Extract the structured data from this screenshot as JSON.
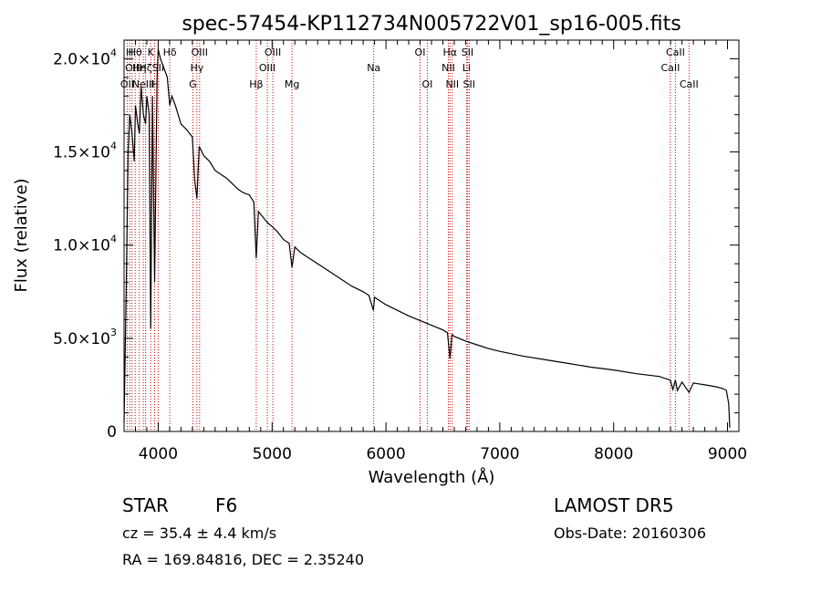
{
  "chart_data": {
    "type": "line",
    "title": "spec-57454-KP112734N005722V01_sp16-005.fits",
    "xlabel": "Wavelength (Å)",
    "ylabel": "Flux (relative)",
    "xlim": [
      3700,
      9100
    ],
    "ylim": [
      0,
      21000
    ],
    "x_ticks": [
      {
        "value": 4000,
        "label": "4000"
      },
      {
        "value": 5000,
        "label": "5000"
      },
      {
        "value": 6000,
        "label": "6000"
      },
      {
        "value": 7000,
        "label": "7000"
      },
      {
        "value": 8000,
        "label": "8000"
      },
      {
        "value": 9000,
        "label": "9000"
      }
    ],
    "y_ticks": [
      {
        "value": 0,
        "mant": "0",
        "exp": ""
      },
      {
        "value": 5000,
        "mant": "5.0×10",
        "exp": "3"
      },
      {
        "value": 10000,
        "mant": "1.0×10",
        "exp": "4"
      },
      {
        "value": 15000,
        "mant": "1.5×10",
        "exp": "4"
      },
      {
        "value": 20000,
        "mant": "2.0×10",
        "exp": "4"
      }
    ],
    "grid": false,
    "series": [
      {
        "color": "#000000",
        "x": [
          3700,
          3720,
          3735,
          3750,
          3770,
          3790,
          3800,
          3820,
          3835,
          3850,
          3870,
          3889,
          3900,
          3920,
          3934,
          3950,
          3968,
          3990,
          4000,
          4020,
          4050,
          4080,
          4101,
          4120,
          4150,
          4200,
          4250,
          4300,
          4320,
          4340,
          4360,
          4400,
          4450,
          4500,
          4550,
          4600,
          4650,
          4700,
          4750,
          4800,
          4840,
          4861,
          4880,
          4920,
          4960,
          5000,
          5050,
          5100,
          5150,
          5175,
          5200,
          5250,
          5300,
          5400,
          5500,
          5600,
          5700,
          5800,
          5850,
          5890,
          5900,
          5950,
          6000,
          6100,
          6200,
          6300,
          6400,
          6500,
          6540,
          6563,
          6580,
          6600,
          6700,
          6800,
          6900,
          7000,
          7200,
          7400,
          7600,
          7800,
          8000,
          8200,
          8400,
          8498,
          8520,
          8542,
          8560,
          8600,
          8662,
          8700,
          8800,
          8900,
          8960,
          8990,
          9010,
          9020
        ],
        "y": [
          500,
          8000,
          15000,
          17000,
          16000,
          14500,
          17500,
          16500,
          16000,
          18500,
          17000,
          16500,
          18000,
          17000,
          5500,
          18000,
          8000,
          19000,
          20500,
          20000,
          19500,
          19000,
          17500,
          18000,
          17500,
          16500,
          16200,
          15800,
          13500,
          12500,
          15300,
          14800,
          14500,
          14000,
          13800,
          13600,
          13300,
          13000,
          12800,
          12700,
          12300,
          9300,
          11800,
          11500,
          11200,
          11000,
          10700,
          10300,
          10100,
          8800,
          9900,
          9600,
          9400,
          9000,
          8600,
          8200,
          7800,
          7500,
          7300,
          6500,
          7200,
          7000,
          6800,
          6500,
          6200,
          5950,
          5700,
          5450,
          5300,
          3900,
          5200,
          5100,
          4850,
          4650,
          4450,
          4300,
          4050,
          3850,
          3650,
          3450,
          3300,
          3100,
          2950,
          2750,
          2250,
          2750,
          2200,
          2650,
          2100,
          2600,
          2500,
          2400,
          2300,
          2200,
          1500,
          200
        ]
      }
    ],
    "reference_lines": [
      {
        "wavelength": 3727,
        "label": "OII",
        "row": 2
      },
      {
        "wavelength": 3750,
        "label": "H",
        "row": 0
      },
      {
        "wavelength": 3770,
        "label": "OII",
        "row": 1
      },
      {
        "wavelength": 3798,
        "label": "Hθ",
        "row": 0
      },
      {
        "wavelength": 3835,
        "label": "Hη",
        "row": 1
      },
      {
        "wavelength": 3869,
        "label": "NeIII",
        "row": 2
      },
      {
        "wavelength": 3889,
        "label": "Hζ",
        "row": 1
      },
      {
        "wavelength": 3934,
        "label": "K",
        "row": 0
      },
      {
        "wavelength": 3968,
        "label": "H",
        "row": 2
      },
      {
        "wavelength": 4000,
        "label": "SII",
        "row": 1
      },
      {
        "wavelength": 4101,
        "label": "Hδ",
        "row": 0
      },
      {
        "wavelength": 4304,
        "label": "G",
        "row": 2
      },
      {
        "wavelength": 4340,
        "label": "Hγ",
        "row": 1
      },
      {
        "wavelength": 4363,
        "label": "OIII",
        "row": 0
      },
      {
        "wavelength": 4861,
        "label": "Hβ",
        "row": 2
      },
      {
        "wavelength": 4959,
        "label": "OIII",
        "row": 1
      },
      {
        "wavelength": 5007,
        "label": "OIII",
        "row": 0
      },
      {
        "wavelength": 5175,
        "label": "Mg",
        "row": 2
      },
      {
        "wavelength": 5893,
        "label": "Na",
        "row": 1
      },
      {
        "wavelength": 6300,
        "label": "OI",
        "row": 0
      },
      {
        "wavelength": 6363,
        "label": "OI",
        "row": 2
      },
      {
        "wavelength": 6548,
        "label": "NII",
        "row": 1
      },
      {
        "wavelength": 6563,
        "label": "Hα",
        "row": 0
      },
      {
        "wavelength": 6583,
        "label": "NII",
        "row": 2
      },
      {
        "wavelength": 6708,
        "label": "Li",
        "row": 1
      },
      {
        "wavelength": 6716,
        "label": "SII",
        "row": 0
      },
      {
        "wavelength": 6731,
        "label": "SII",
        "row": 2
      },
      {
        "wavelength": 8498,
        "label": "CaII",
        "row": 1
      },
      {
        "wavelength": 8542,
        "label": "CaII",
        "row": 0
      },
      {
        "wavelength": 8662,
        "label": "CaII",
        "row": 2
      }
    ]
  },
  "info": {
    "object_class": "STAR",
    "subclass": "F6",
    "redshift_text": "cz = 35.4 ± 4.4 km/s",
    "coords_text": "RA = 169.84816, DEC =   2.35240",
    "survey": "LAMOST DR5",
    "obs_date": "Obs-Date: 20160306"
  },
  "colors": {
    "reference_line": "#cc0000",
    "spectrum": "#000000",
    "axes": "#000000"
  }
}
